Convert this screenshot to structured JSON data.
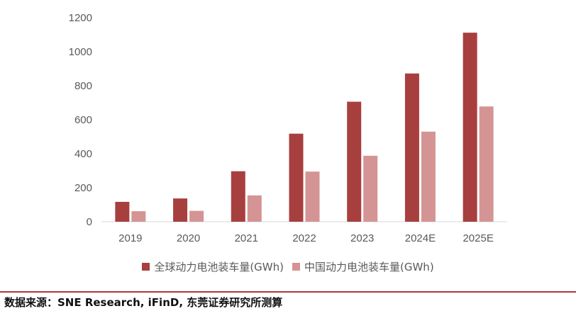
{
  "chart_data": {
    "type": "bar",
    "categories": [
      "2019",
      "2020",
      "2021",
      "2022",
      "2023",
      "2024E",
      "2025E"
    ],
    "series": [
      {
        "name": "全球动力电池装车量(GWh)",
        "values": [
          117,
          137,
          297,
          518,
          706,
          872,
          1112
        ],
        "color": "#a83f3f"
      },
      {
        "name": "中国动力电池装车量(GWh)",
        "values": [
          62,
          64,
          155,
          295,
          388,
          530,
          678
        ],
        "color": "#d49494"
      }
    ],
    "yticks": [
      0,
      200,
      400,
      600,
      800,
      1000,
      1200
    ],
    "ylim": [
      0,
      1200
    ],
    "grid": false,
    "legend_position": "bottom"
  },
  "source": "数据来源：SNE Research, iFinD, 东莞证券研究所测算",
  "rule_color": "#b03a36"
}
